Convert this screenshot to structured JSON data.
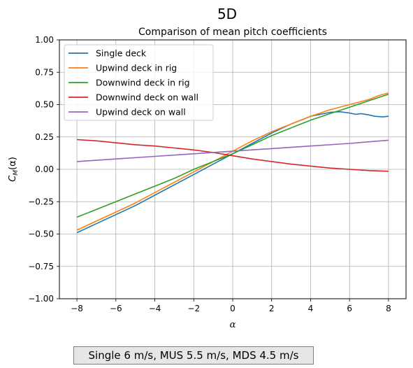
{
  "chart_data": {
    "type": "line",
    "suptitle": "5D",
    "title": "Comparison of mean pitch coefficients",
    "xlabel": "α",
    "ylabel_main": "C",
    "ylabel_sub": "M",
    "ylabel_arg": "(α)",
    "xlim": [
      -8.9,
      8.9
    ],
    "ylim": [
      -1.0,
      1.0
    ],
    "xticks": [
      -8,
      -6,
      -4,
      -2,
      0,
      2,
      4,
      6,
      8
    ],
    "yticks": [
      -1.0,
      -0.75,
      -0.5,
      -0.25,
      0.0,
      0.25,
      0.5,
      0.75,
      1.0
    ],
    "xtick_labels": [
      "−8",
      "−6",
      "−4",
      "−2",
      "0",
      "2",
      "4",
      "6",
      "8"
    ],
    "ytick_labels": [
      "−1.00",
      "−0.75",
      "−0.50",
      "−0.25",
      "0.00",
      "0.25",
      "0.50",
      "0.75",
      "1.00"
    ],
    "grid": true,
    "legend_position": "top-left",
    "series": [
      {
        "name": "Single deck",
        "color": "#1f77b4",
        "x": [
          -8,
          -7,
          -6,
          -5,
          -4,
          -3,
          -2,
          -1,
          0,
          1,
          2,
          3,
          4,
          4.5,
          5,
          5.5,
          6,
          6.3,
          6.6,
          7,
          7.3,
          7.7,
          8
        ],
        "y": [
          -0.49,
          -0.42,
          -0.35,
          -0.28,
          -0.2,
          -0.12,
          -0.04,
          0.04,
          0.12,
          0.2,
          0.28,
          0.35,
          0.41,
          0.425,
          0.44,
          0.445,
          0.435,
          0.425,
          0.43,
          0.42,
          0.41,
          0.405,
          0.41
        ]
      },
      {
        "name": "Upwind deck in rig",
        "color": "#ff7f0e",
        "x": [
          -8,
          -7,
          -6,
          -5,
          -4,
          -3,
          -2,
          -1,
          0,
          1,
          2,
          3,
          4,
          5,
          6,
          7,
          7.5,
          8
        ],
        "y": [
          -0.47,
          -0.4,
          -0.33,
          -0.26,
          -0.18,
          -0.1,
          -0.02,
          0.06,
          0.14,
          0.22,
          0.29,
          0.35,
          0.41,
          0.46,
          0.5,
          0.54,
          0.57,
          0.59
        ]
      },
      {
        "name": "Downwind deck in rig",
        "color": "#2ca02c",
        "x": [
          -8,
          -7,
          -6,
          -5,
          -4,
          -3,
          -2,
          -1,
          0,
          1,
          2,
          3,
          4,
          5,
          6,
          7,
          8
        ],
        "y": [
          -0.37,
          -0.31,
          -0.25,
          -0.19,
          -0.13,
          -0.07,
          0.0,
          0.06,
          0.12,
          0.19,
          0.26,
          0.32,
          0.38,
          0.43,
          0.48,
          0.53,
          0.58
        ]
      },
      {
        "name": "Downwind deck on wall",
        "color": "#d62728",
        "x": [
          -8,
          -7,
          -6,
          -5,
          -4,
          -3,
          -2,
          -1,
          0,
          1,
          2,
          3,
          4,
          5,
          6,
          7,
          8
        ],
        "y": [
          0.23,
          0.22,
          0.205,
          0.19,
          0.18,
          0.165,
          0.15,
          0.13,
          0.105,
          0.08,
          0.06,
          0.04,
          0.025,
          0.01,
          0.0,
          -0.01,
          -0.015
        ]
      },
      {
        "name": "Upwind deck on wall",
        "color": "#9467bd",
        "x": [
          -8,
          -6,
          -4,
          -2,
          0,
          2,
          4,
          6,
          8
        ],
        "y": [
          0.06,
          0.08,
          0.1,
          0.12,
          0.14,
          0.16,
          0.18,
          0.2,
          0.225
        ]
      }
    ]
  },
  "caption": "Single 6 m/s, MUS 5.5 m/s, MDS 4.5 m/s"
}
